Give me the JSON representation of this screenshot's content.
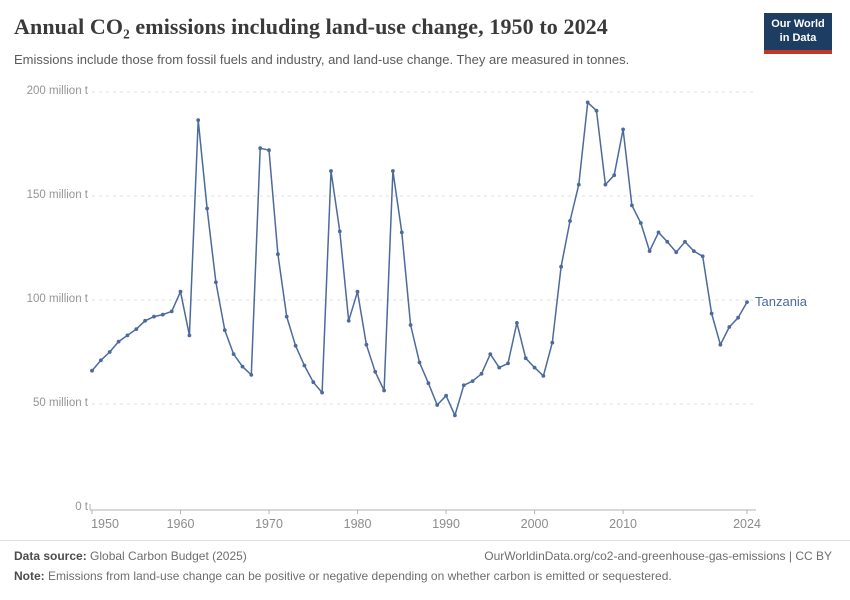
{
  "header": {
    "title": "Annual CO₂ emissions including land-use change, 1950 to 2024",
    "subtitle": "Emissions include those from fossil fuels and industry, and land-use change. They are measured in tonnes.",
    "logo": {
      "line1": "Our World",
      "line2": "in Data"
    }
  },
  "chart_data": {
    "type": "line",
    "title": "Annual CO₂ emissions including land-use change, 1950 to 2024",
    "unit": "million t",
    "xlim": [
      1950,
      2024
    ],
    "ylim": [
      0,
      200
    ],
    "grid": "horizontal-dashed",
    "legend_position": "end-of-line-label",
    "x_ticks": [
      1950,
      1960,
      1970,
      1980,
      1990,
      2000,
      2010,
      2024
    ],
    "y_ticks": [
      {
        "value": 0,
        "label": "0 t"
      },
      {
        "value": 50,
        "label": "50 million t"
      },
      {
        "value": 100,
        "label": "100 million t"
      },
      {
        "value": 150,
        "label": "150 million t"
      },
      {
        "value": 200,
        "label": "200 million t"
      }
    ],
    "series": [
      {
        "name": "Tanzania",
        "color": "#4c6a9c",
        "x": [
          1950,
          1951,
          1952,
          1953,
          1954,
          1955,
          1956,
          1957,
          1958,
          1959,
          1960,
          1961,
          1962,
          1963,
          1964,
          1965,
          1966,
          1967,
          1968,
          1969,
          1970,
          1971,
          1972,
          1973,
          1974,
          1975,
          1976,
          1977,
          1978,
          1979,
          1980,
          1981,
          1982,
          1983,
          1984,
          1985,
          1986,
          1987,
          1988,
          1989,
          1990,
          1991,
          1992,
          1993,
          1994,
          1995,
          1996,
          1997,
          1998,
          1999,
          2000,
          2001,
          2002,
          2003,
          2004,
          2005,
          2006,
          2007,
          2008,
          2009,
          2010,
          2011,
          2012,
          2013,
          2014,
          2015,
          2016,
          2017,
          2018,
          2019,
          2020,
          2021,
          2022,
          2023,
          2024
        ],
        "values": [
          66,
          71,
          75,
          80,
          83,
          86,
          90,
          92,
          93,
          94.5,
          104,
          83,
          186.5,
          144,
          108.5,
          85.5,
          74,
          68,
          64,
          173,
          172,
          122,
          92,
          78,
          68.5,
          60.5,
          55.5,
          162,
          133,
          90,
          104,
          78.5,
          65.5,
          56.5,
          162,
          132.5,
          88,
          70,
          60,
          49.5,
          54,
          44.5,
          59,
          61,
          64.5,
          74,
          67.5,
          69.5,
          89,
          72,
          67.5,
          63.5,
          79.5,
          116,
          138,
          155.5,
          195,
          191,
          155.5,
          160,
          182,
          145.5,
          137,
          123.5,
          132.5,
          128,
          123,
          128,
          123.5,
          121,
          93.5,
          78.5,
          87,
          91.5,
          99
        ]
      }
    ]
  },
  "footer": {
    "datasource_label": "Data source:",
    "datasource_value": " Global Carbon Budget (2025)",
    "link": "OurWorldinData.org/co2-and-greenhouse-gas-emissions | CC BY",
    "note_label": "Note:",
    "note_value": " Emissions from land-use change can be positive or negative depending on whether carbon is emitted or sequestered."
  },
  "colors": {
    "line": "#4c6a9c",
    "grid": "#dcdcdc",
    "axis": "#b3b3b3",
    "tick_label": "#8c8c8c",
    "logo_bg": "#1d3d63",
    "logo_red": "#bf3728"
  }
}
